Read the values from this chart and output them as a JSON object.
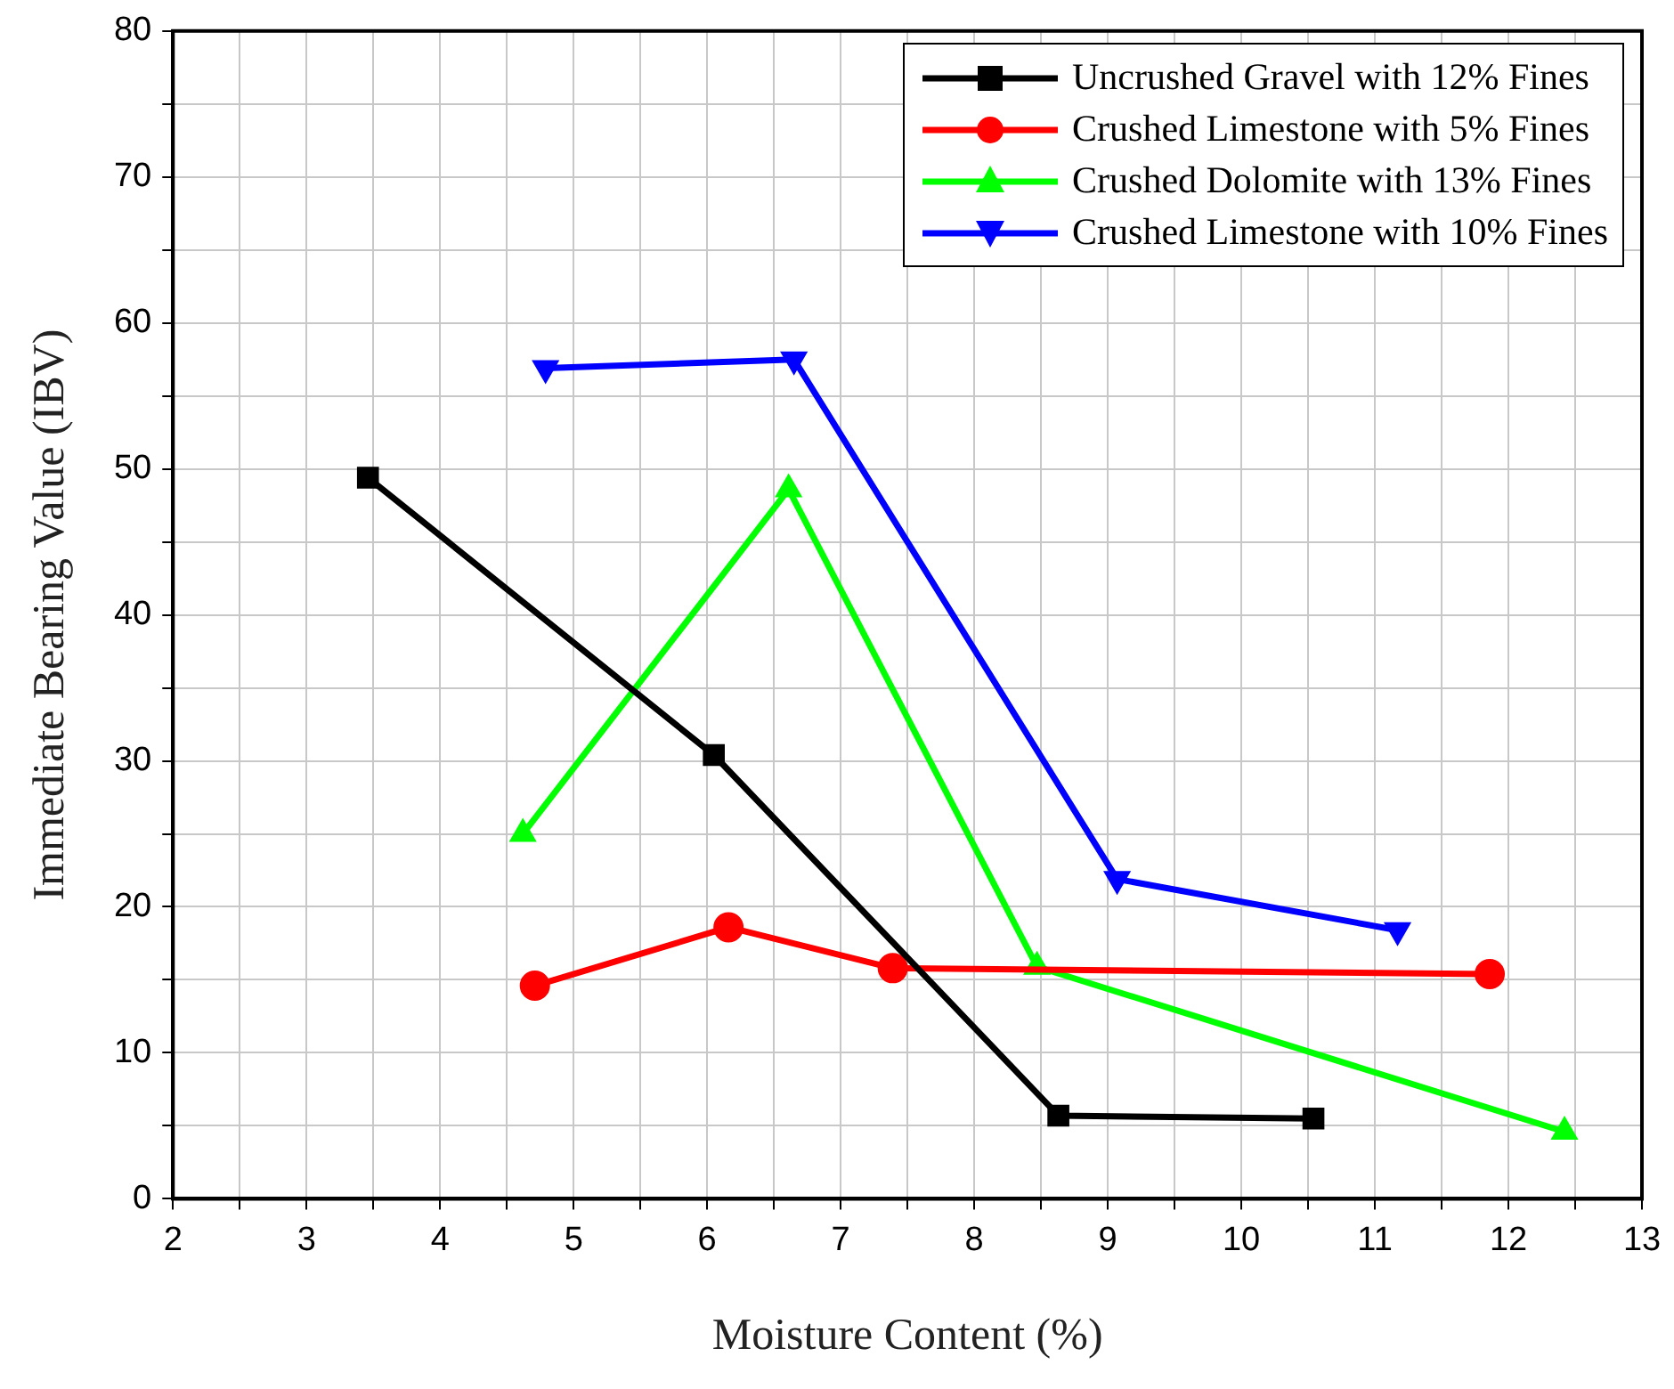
{
  "chart_data": {
    "type": "line",
    "xlabel": "Moisture Content (%)",
    "ylabel": "Immediate Bearing Value (IBV)",
    "xlim": [
      2,
      13
    ],
    "ylim": [
      0,
      80
    ],
    "xticks": [
      2,
      {
        "value": 2.5,
        "label": null
      },
      3,
      {
        "value": 3.5,
        "label": null
      },
      4,
      {
        "value": 4.5,
        "label": null
      },
      5,
      {
        "value": 5.5,
        "label": null
      },
      6,
      {
        "value": 6.5,
        "label": null
      },
      7,
      {
        "value": 7.5,
        "label": null
      },
      8,
      {
        "value": 8.5,
        "label": null
      },
      9,
      {
        "value": 9.5,
        "label": null
      },
      10,
      {
        "value": 10.5,
        "label": null
      },
      11,
      {
        "value": 11.5,
        "label": null
      },
      12,
      {
        "value": 12.5,
        "label": null
      },
      13
    ],
    "yticks": [
      0,
      {
        "value": 5,
        "label": null
      },
      10,
      {
        "value": 15,
        "label": null
      },
      20,
      {
        "value": 25,
        "label": null
      },
      30,
      {
        "value": 35,
        "label": null
      },
      40,
      {
        "value": 45,
        "label": null
      },
      50,
      {
        "value": 55,
        "label": null
      },
      60,
      {
        "value": 65,
        "label": null
      },
      70,
      {
        "value": 75,
        "label": null
      },
      80
    ],
    "grid": true,
    "legend": "top right",
    "line_style": "solid",
    "series": [
      {
        "name": "Uncrushed Gravel with 12% Fines",
        "color": "#000000",
        "marker": "square",
        "x": [
          3.46,
          6.05,
          8.63,
          10.54
        ],
        "values": [
          49.4,
          30.4,
          5.7,
          5.5
        ]
      },
      {
        "name": "Crushed Limestone with 5% Fines",
        "color": "#ff0000",
        "marker": "circle",
        "x": [
          4.71,
          6.16,
          7.39,
          11.86
        ],
        "values": [
          14.6,
          18.6,
          15.8,
          15.4
        ]
      },
      {
        "name": "Crushed Dolomite with 13% Fines",
        "color": "#00ff00",
        "marker": "triangle",
        "x": [
          4.62,
          6.61,
          8.47,
          12.42
        ],
        "values": [
          25.0,
          48.6,
          15.9,
          4.6
        ]
      },
      {
        "name": "Crushed Limestone with 10% Fines",
        "color": "#0000ff",
        "marker": "triangle-down",
        "x": [
          4.79,
          6.65,
          9.07,
          11.17
        ],
        "values": [
          56.9,
          57.5,
          21.9,
          18.4
        ]
      }
    ]
  }
}
